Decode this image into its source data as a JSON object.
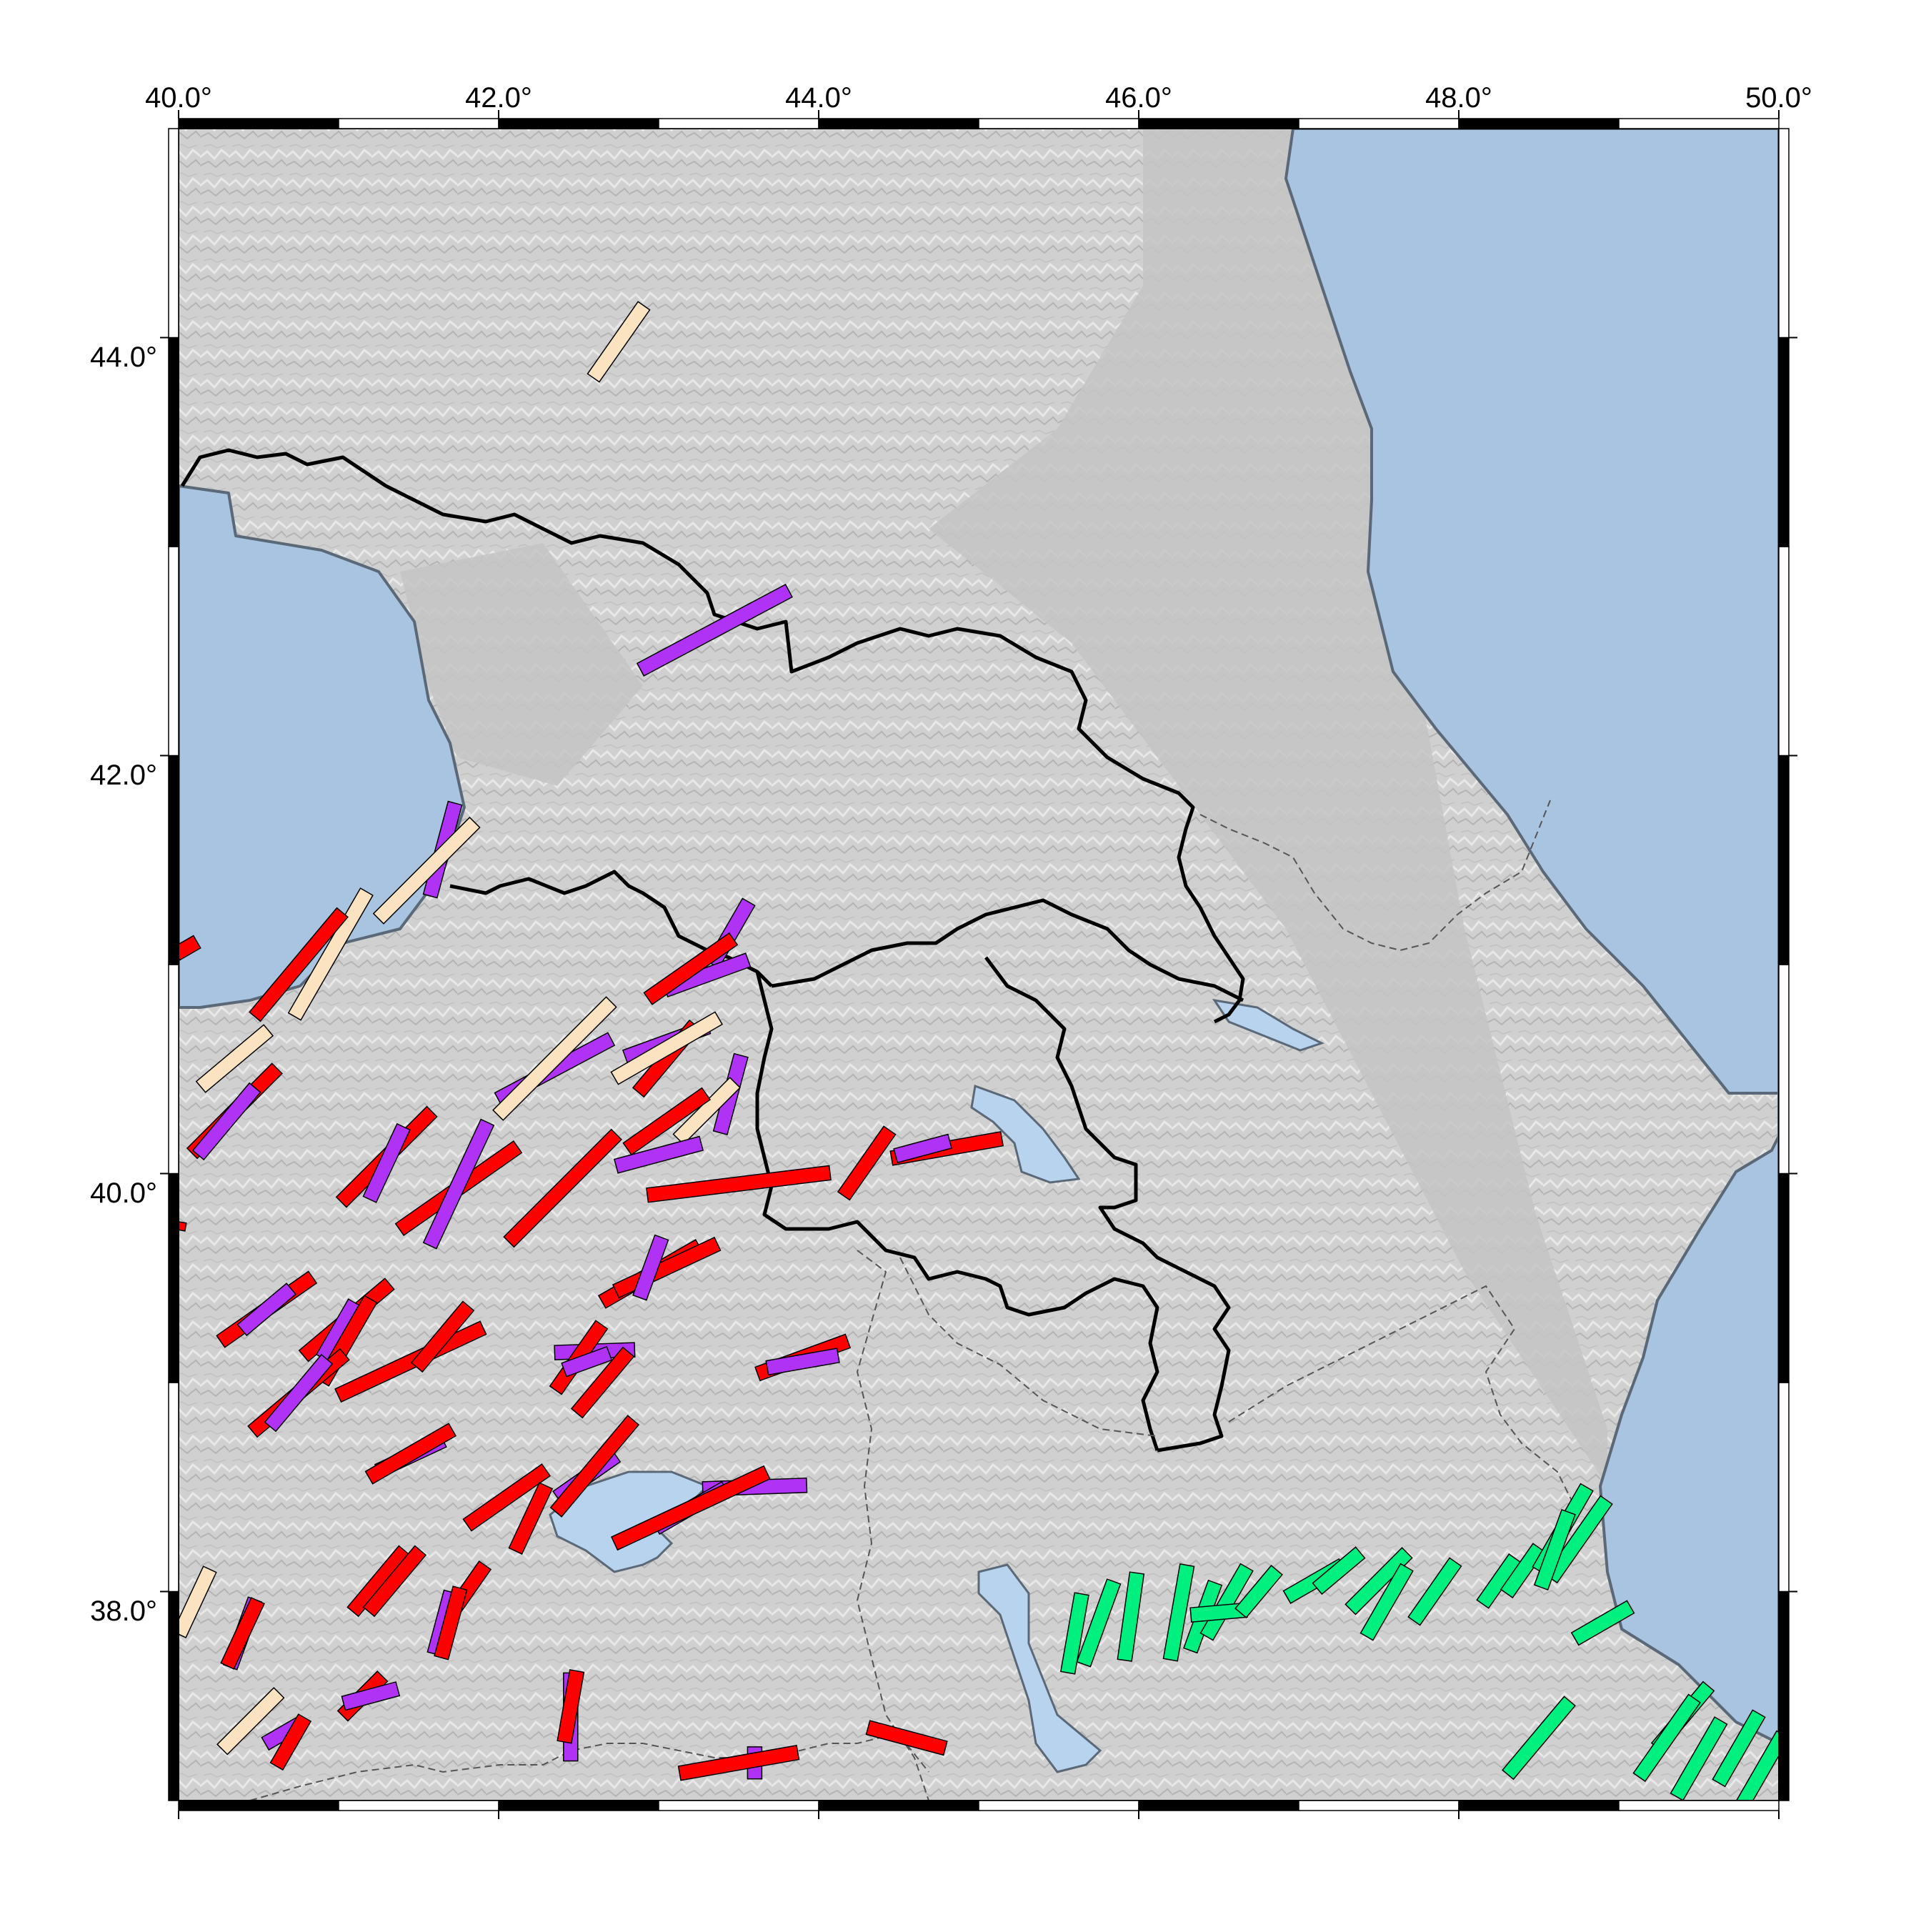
{
  "map": {
    "lon_range": [
      40.0,
      50.0
    ],
    "lat_range": [
      37.0,
      45.0
    ],
    "colors": {
      "land": "#d2d2d2",
      "sea": "#a9c4e0",
      "lake": "#b8d3ee",
      "cat_red": "#ff0000",
      "cat_purple": "#b033f5",
      "cat_beige": "#fbe3c2",
      "cat_green": "#00f07f"
    },
    "x_ticks": [
      "40.0°",
      "42.0°",
      "44.0°",
      "46.0°",
      "48.0°",
      "50.0°"
    ],
    "y_ticks": [
      "44.0°",
      "42.0°",
      "40.0°",
      "38.0°"
    ]
  },
  "bars": [
    {
      "c": "beige",
      "lat": 43.98,
      "lon": 42.75,
      "az": 35,
      "len": 0.55
    },
    {
      "c": "purple",
      "lat": 42.6,
      "lon": 43.35,
      "az": 62,
      "len": 1.05
    },
    {
      "c": "purple",
      "lat": 41.55,
      "lon": 41.65,
      "az": 15,
      "len": 0.6
    },
    {
      "c": "beige",
      "lat": 41.45,
      "lon": 41.55,
      "az": 45,
      "len": 0.85
    },
    {
      "c": "beige",
      "lat": 41.05,
      "lon": 40.95,
      "az": 30,
      "len": 0.9
    },
    {
      "c": "red",
      "lat": 41.0,
      "lon": 40.75,
      "az": 40,
      "len": 0.85
    },
    {
      "c": "red",
      "lat": 41.08,
      "lon": 40.05,
      "az": 60,
      "len": 0.15
    },
    {
      "c": "purple",
      "lat": 41.15,
      "lon": 43.45,
      "az": 30,
      "len": 0.45
    },
    {
      "c": "purple",
      "lat": 40.95,
      "lon": 43.3,
      "az": 70,
      "len": 0.55
    },
    {
      "c": "red",
      "lat": 40.98,
      "lon": 43.2,
      "az": 55,
      "len": 0.65
    },
    {
      "c": "beige",
      "lat": 40.55,
      "lon": 40.35,
      "az": 50,
      "len": 0.55
    },
    {
      "c": "red",
      "lat": 40.3,
      "lon": 40.35,
      "az": 45,
      "len": 0.75
    },
    {
      "c": "purple",
      "lat": 40.25,
      "lon": 40.3,
      "az": 40,
      "len": 0.55
    },
    {
      "c": "purple",
      "lat": 40.5,
      "lon": 42.35,
      "az": 62,
      "len": 0.8
    },
    {
      "c": "beige",
      "lat": 40.55,
      "lon": 42.35,
      "az": 45,
      "len": 1.0
    },
    {
      "c": "purple",
      "lat": 40.63,
      "lon": 43.05,
      "az": 70,
      "len": 0.55
    },
    {
      "c": "red",
      "lat": 40.55,
      "lon": 43.05,
      "az": 40,
      "len": 0.55
    },
    {
      "c": "beige",
      "lat": 40.6,
      "lon": 43.05,
      "az": 60,
      "len": 0.75
    },
    {
      "c": "purple",
      "lat": 40.38,
      "lon": 43.45,
      "az": 15,
      "len": 0.5
    },
    {
      "c": "beige",
      "lat": 40.3,
      "lon": 43.3,
      "az": 45,
      "len": 0.5
    },
    {
      "c": "red",
      "lat": 40.25,
      "lon": 43.05,
      "az": 55,
      "len": 0.6
    },
    {
      "c": "purple",
      "lat": 40.09,
      "lon": 43.0,
      "az": 75,
      "len": 0.55
    },
    {
      "c": "red",
      "lat": 40.08,
      "lon": 41.3,
      "az": 45,
      "len": 0.8
    },
    {
      "c": "purple",
      "lat": 40.05,
      "lon": 41.3,
      "az": 25,
      "len": 0.5
    },
    {
      "c": "red",
      "lat": 39.93,
      "lon": 41.75,
      "az": 55,
      "len": 0.9
    },
    {
      "c": "purple",
      "lat": 39.95,
      "lon": 41.75,
      "az": 25,
      "len": 0.85
    },
    {
      "c": "red",
      "lat": 39.93,
      "lon": 42.4,
      "az": 45,
      "len": 0.95
    },
    {
      "c": "red",
      "lat": 39.95,
      "lon": 43.5,
      "az": 83,
      "len": 1.15
    },
    {
      "c": "red",
      "lat": 40.05,
      "lon": 44.3,
      "az": 35,
      "len": 0.5
    },
    {
      "c": "red",
      "lat": 40.12,
      "lon": 44.8,
      "az": 80,
      "len": 0.7
    },
    {
      "c": "purple",
      "lat": 40.12,
      "lon": 44.65,
      "az": 75,
      "len": 0.35
    },
    {
      "c": "red",
      "lat": 39.52,
      "lon": 42.95,
      "az": 60,
      "len": 0.7
    },
    {
      "c": "red",
      "lat": 39.55,
      "lon": 43.05,
      "az": 65,
      "len": 0.7
    },
    {
      "c": "purple",
      "lat": 39.55,
      "lon": 42.95,
      "az": 20,
      "len": 0.4
    },
    {
      "c": "red",
      "lat": 39.35,
      "lon": 40.55,
      "az": 55,
      "len": 0.7
    },
    {
      "c": "purple",
      "lat": 39.35,
      "lon": 40.55,
      "az": 50,
      "len": 0.4
    },
    {
      "c": "red",
      "lat": 39.3,
      "lon": 41.05,
      "az": 50,
      "len": 0.7
    },
    {
      "c": "purple",
      "lat": 39.25,
      "lon": 41.0,
      "az": 30,
      "len": 0.4
    },
    {
      "c": "red",
      "lat": 39.2,
      "lon": 41.05,
      "az": 30,
      "len": 0.6
    },
    {
      "c": "red",
      "lat": 39.1,
      "lon": 41.45,
      "az": 65,
      "len": 1.0
    },
    {
      "c": "red",
      "lat": 39.22,
      "lon": 41.65,
      "az": 40,
      "len": 0.5
    },
    {
      "c": "purple",
      "lat": 39.15,
      "lon": 42.6,
      "az": 88,
      "len": 0.5
    },
    {
      "c": "red",
      "lat": 39.12,
      "lon": 42.5,
      "az": 35,
      "len": 0.5
    },
    {
      "c": "red",
      "lat": 39.0,
      "lon": 42.65,
      "az": 40,
      "len": 0.5
    },
    {
      "c": "purple",
      "lat": 39.1,
      "lon": 42.55,
      "az": 70,
      "len": 0.3
    },
    {
      "c": "red",
      "lat": 39.12,
      "lon": 43.9,
      "az": 70,
      "len": 0.6
    },
    {
      "c": "purple",
      "lat": 39.1,
      "lon": 43.9,
      "az": 80,
      "len": 0.45
    },
    {
      "c": "red",
      "lat": 38.95,
      "lon": 40.75,
      "az": 50,
      "len": 0.75
    },
    {
      "c": "purple",
      "lat": 38.95,
      "lon": 40.75,
      "az": 40,
      "len": 0.55
    },
    {
      "c": "purple",
      "lat": 38.65,
      "lon": 41.45,
      "az": 65,
      "len": 0.45
    },
    {
      "c": "red",
      "lat": 38.66,
      "lon": 41.45,
      "az": 60,
      "len": 0.6
    },
    {
      "c": "red",
      "lat": 38.45,
      "lon": 42.05,
      "az": 55,
      "len": 0.6
    },
    {
      "c": "red",
      "lat": 38.35,
      "lon": 42.2,
      "az": 25,
      "len": 0.45
    },
    {
      "c": "purple",
      "lat": 38.55,
      "lon": 42.55,
      "az": 55,
      "len": 0.45
    },
    {
      "c": "red",
      "lat": 38.6,
      "lon": 42.6,
      "az": 40,
      "len": 0.75
    },
    {
      "c": "purple",
      "lat": 38.5,
      "lon": 43.6,
      "az": 88,
      "len": 0.65
    },
    {
      "c": "purple",
      "lat": 38.4,
      "lon": 43.2,
      "az": 60,
      "len": 0.5
    },
    {
      "c": "red",
      "lat": 38.4,
      "lon": 43.2,
      "az": 65,
      "len": 1.05
    },
    {
      "c": "red",
      "lat": 38.05,
      "lon": 41.25,
      "az": 40,
      "len": 0.5
    },
    {
      "c": "red",
      "lat": 38.05,
      "lon": 41.35,
      "az": 40,
      "len": 0.5
    },
    {
      "c": "red",
      "lat": 38.0,
      "lon": 41.8,
      "az": 35,
      "len": 0.4
    },
    {
      "c": "purple",
      "lat": 37.85,
      "lon": 41.65,
      "az": 15,
      "len": 0.4
    },
    {
      "c": "red",
      "lat": 37.85,
      "lon": 41.7,
      "az": 15,
      "len": 0.45
    },
    {
      "c": "beige",
      "lat": 37.95,
      "lon": 40.1,
      "az": 25,
      "len": 0.45
    },
    {
      "c": "purple",
      "lat": 37.8,
      "lon": 40.4,
      "az": 20,
      "len": 0.45
    },
    {
      "c": "red",
      "lat": 37.8,
      "lon": 40.4,
      "az": 25,
      "len": 0.45
    },
    {
      "c": "red",
      "lat": 37.5,
      "lon": 41.15,
      "az": 45,
      "len": 0.35
    },
    {
      "c": "purple",
      "lat": 37.5,
      "lon": 41.2,
      "az": 75,
      "len": 0.35
    },
    {
      "c": "beige",
      "lat": 37.38,
      "lon": 40.45,
      "az": 45,
      "len": 0.5
    },
    {
      "c": "purple",
      "lat": 37.32,
      "lon": 40.65,
      "az": 60,
      "len": 0.25
    },
    {
      "c": "red",
      "lat": 37.28,
      "lon": 40.7,
      "az": 30,
      "len": 0.35
    },
    {
      "c": "purple",
      "lat": 37.4,
      "lon": 42.45,
      "az": 0,
      "len": 0.55
    },
    {
      "c": "red",
      "lat": 37.45,
      "lon": 42.45,
      "az": 10,
      "len": 0.45
    },
    {
      "c": "purple",
      "lat": 37.18,
      "lon": 43.6,
      "az": 0,
      "len": 0.2
    },
    {
      "c": "red",
      "lat": 37.18,
      "lon": 43.5,
      "az": 80,
      "len": 0.75
    },
    {
      "c": "red",
      "lat": 37.3,
      "lon": 44.55,
      "az": 105,
      "len": 0.5
    },
    {
      "c": "red",
      "lat": 39.75,
      "lon": 40.0,
      "az": 10,
      "len": 0.05
    },
    {
      "c": "green",
      "lat": 37.8,
      "lon": 45.6,
      "az": 10,
      "len": 0.5
    },
    {
      "c": "green",
      "lat": 37.85,
      "lon": 45.75,
      "az": 20,
      "len": 0.55
    },
    {
      "c": "green",
      "lat": 37.88,
      "lon": 45.95,
      "az": 8,
      "len": 0.55
    },
    {
      "c": "green",
      "lat": 37.9,
      "lon": 46.25,
      "az": 10,
      "len": 0.6
    },
    {
      "c": "green",
      "lat": 37.88,
      "lon": 46.4,
      "az": 20,
      "len": 0.45
    },
    {
      "c": "green",
      "lat": 37.95,
      "lon": 46.55,
      "az": 30,
      "len": 0.5
    },
    {
      "c": "green",
      "lat": 37.9,
      "lon": 46.5,
      "az": 85,
      "len": 0.35
    },
    {
      "c": "green",
      "lat": 38.0,
      "lon": 46.75,
      "az": 40,
      "len": 0.35
    },
    {
      "c": "green",
      "lat": 38.05,
      "lon": 47.1,
      "az": 60,
      "len": 0.4
    },
    {
      "c": "green",
      "lat": 38.1,
      "lon": 47.25,
      "az": 50,
      "len": 0.35
    },
    {
      "c": "green",
      "lat": 38.05,
      "lon": 47.5,
      "az": 45,
      "len": 0.5
    },
    {
      "c": "green",
      "lat": 37.95,
      "lon": 47.55,
      "az": 30,
      "len": 0.5
    },
    {
      "c": "green",
      "lat": 38.0,
      "lon": 47.85,
      "az": 35,
      "len": 0.45
    },
    {
      "c": "green",
      "lat": 38.05,
      "lon": 48.25,
      "az": 35,
      "len": 0.35
    },
    {
      "c": "green",
      "lat": 38.1,
      "lon": 48.4,
      "az": 35,
      "len": 0.35
    },
    {
      "c": "green",
      "lat": 38.3,
      "lon": 48.65,
      "az": 30,
      "len": 0.6
    },
    {
      "c": "green",
      "lat": 38.25,
      "lon": 48.75,
      "az": 35,
      "len": 0.6
    },
    {
      "c": "green",
      "lat": 38.2,
      "lon": 48.6,
      "az": 20,
      "len": 0.5
    },
    {
      "c": "green",
      "lat": 37.85,
      "lon": 48.9,
      "az": 60,
      "len": 0.4
    },
    {
      "c": "green",
      "lat": 37.3,
      "lon": 48.5,
      "az": 40,
      "len": 0.6
    },
    {
      "c": "green",
      "lat": 37.4,
      "lon": 49.4,
      "az": 40,
      "len": 0.5
    },
    {
      "c": "green",
      "lat": 37.3,
      "lon": 49.3,
      "az": 35,
      "len": 0.6
    },
    {
      "c": "green",
      "lat": 37.2,
      "lon": 49.5,
      "az": 30,
      "len": 0.55
    },
    {
      "c": "green",
      "lat": 37.25,
      "lon": 49.75,
      "az": 30,
      "len": 0.5
    },
    {
      "c": "green",
      "lat": 37.15,
      "lon": 49.9,
      "az": 30,
      "len": 0.5
    }
  ]
}
